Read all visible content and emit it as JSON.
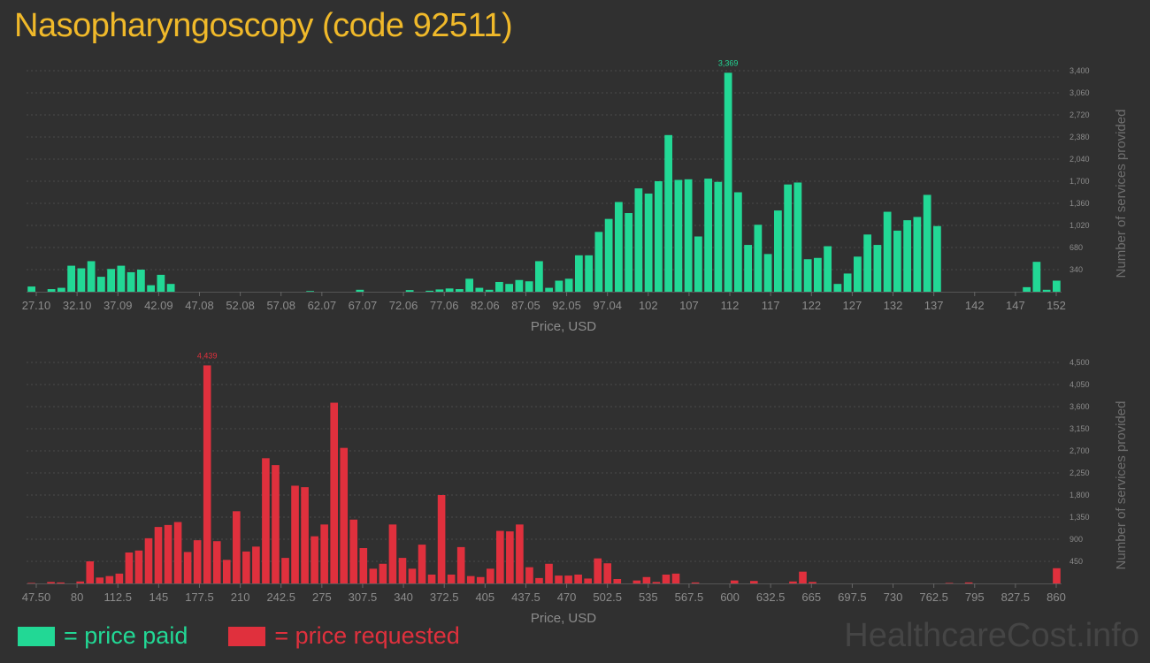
{
  "title": "Nasopharyngoscopy (code 92511)",
  "watermark": "HealthcareCost.info",
  "legend": [
    {
      "label": "= price paid",
      "color": "#22d895"
    },
    {
      "label": "= price requested",
      "color": "#e0303d"
    }
  ],
  "colors": {
    "background": "#303030",
    "grid": "#4a4a4a",
    "axis_text": "#8c8c8c",
    "title": "#f0b92a"
  },
  "chart_data": [
    {
      "type": "bar",
      "color": "#22d895",
      "xlabel": "Price, USD",
      "ylabel": "Number of services provided",
      "x_range": [
        27.1,
        152
      ],
      "ylim": [
        0,
        3400
      ],
      "yticks": [
        340,
        680,
        1020,
        1360,
        1700,
        2040,
        2380,
        2720,
        3060,
        3400
      ],
      "ytick_labels": [
        "340",
        "680",
        "1,020",
        "1,360",
        "1,700",
        "2,040",
        "2,380",
        "2,720",
        "3,060",
        "3,400"
      ],
      "xticks": [
        27.1,
        32.1,
        37.09,
        42.09,
        47.08,
        52.08,
        57.08,
        62.07,
        67.07,
        72.06,
        77.06,
        82.06,
        87.05,
        92.05,
        97.04,
        102,
        107,
        112,
        117,
        122,
        127,
        132,
        137,
        142,
        147,
        152
      ],
      "xtick_labels": [
        "27.10",
        "32.10",
        "37.09",
        "42.09",
        "47.08",
        "52.08",
        "57.08",
        "62.07",
        "67.07",
        "72.06",
        "77.06",
        "82.06",
        "87.05",
        "92.05",
        "97.04",
        "102",
        "107",
        "112",
        "117",
        "122",
        "127",
        "132",
        "137",
        "142",
        "147",
        "152"
      ],
      "max_label": "3,369",
      "values": [
        80,
        0,
        40,
        60,
        400,
        360,
        470,
        230,
        350,
        400,
        300,
        340,
        100,
        260,
        120,
        0,
        0,
        0,
        0,
        0,
        0,
        0,
        0,
        0,
        0,
        0,
        0,
        0,
        10,
        0,
        0,
        0,
        0,
        30,
        0,
        0,
        0,
        0,
        25,
        0,
        15,
        35,
        50,
        40,
        200,
        60,
        30,
        150,
        120,
        180,
        160,
        470,
        60,
        170,
        200,
        560,
        560,
        920,
        1120,
        1380,
        1210,
        1590,
        1510,
        1700,
        2410,
        1720,
        1730,
        850,
        1740,
        1690,
        3369,
        1530,
        720,
        1030,
        580,
        1250,
        1650,
        1680,
        500,
        520,
        700,
        120,
        280,
        540,
        880,
        720,
        1230,
        940,
        1100,
        1150,
        1490,
        1010,
        0,
        0,
        0,
        0,
        0,
        0,
        0,
        0,
        70,
        460,
        30,
        170
      ]
    },
    {
      "type": "bar",
      "color": "#e0303d",
      "xlabel": "Price, USD",
      "ylabel": "Number of services provided",
      "x_range": [
        47.5,
        860
      ],
      "ylim": [
        0,
        4500
      ],
      "yticks": [
        450,
        900,
        1350,
        1800,
        2250,
        2700,
        3150,
        3600,
        4050,
        4500
      ],
      "ytick_labels": [
        "450",
        "900",
        "1,350",
        "1,800",
        "2,250",
        "2,700",
        "3,150",
        "3,600",
        "4,050",
        "4,500"
      ],
      "xticks": [
        47.5,
        80,
        112.5,
        145,
        177.5,
        210,
        242.5,
        275,
        307.5,
        340,
        372.5,
        405,
        437.5,
        470,
        502.5,
        535,
        567.5,
        600,
        632.5,
        665,
        697.5,
        730,
        762.5,
        795,
        827.5,
        860
      ],
      "xtick_labels": [
        "47.50",
        "80",
        "112.5",
        "145",
        "177.5",
        "210",
        "242.5",
        "275",
        "307.5",
        "340",
        "372.5",
        "405",
        "437.5",
        "470",
        "502.5",
        "535",
        "567.5",
        "600",
        "632.5",
        "665",
        "697.5",
        "730",
        "762.5",
        "795",
        "827.5",
        "860"
      ],
      "max_label": "4,439",
      "values": [
        10,
        0,
        30,
        20,
        0,
        40,
        450,
        120,
        150,
        200,
        630,
        670,
        920,
        1150,
        1190,
        1250,
        640,
        880,
        4439,
        860,
        480,
        1470,
        650,
        750,
        2550,
        2410,
        520,
        1990,
        1960,
        960,
        1200,
        3680,
        2760,
        1300,
        720,
        300,
        400,
        1200,
        520,
        300,
        790,
        180,
        1800,
        180,
        740,
        150,
        130,
        300,
        1070,
        1060,
        1200,
        330,
        110,
        400,
        160,
        160,
        180,
        100,
        510,
        410,
        90,
        0,
        60,
        130,
        30,
        180,
        200,
        0,
        20,
        0,
        0,
        0,
        60,
        0,
        50,
        0,
        0,
        0,
        40,
        240,
        30,
        0,
        0,
        0,
        0,
        0,
        0,
        0,
        0,
        0,
        0,
        0,
        0,
        0,
        10,
        0,
        20,
        0,
        0,
        0,
        0,
        0,
        0,
        0,
        0,
        310
      ]
    }
  ]
}
